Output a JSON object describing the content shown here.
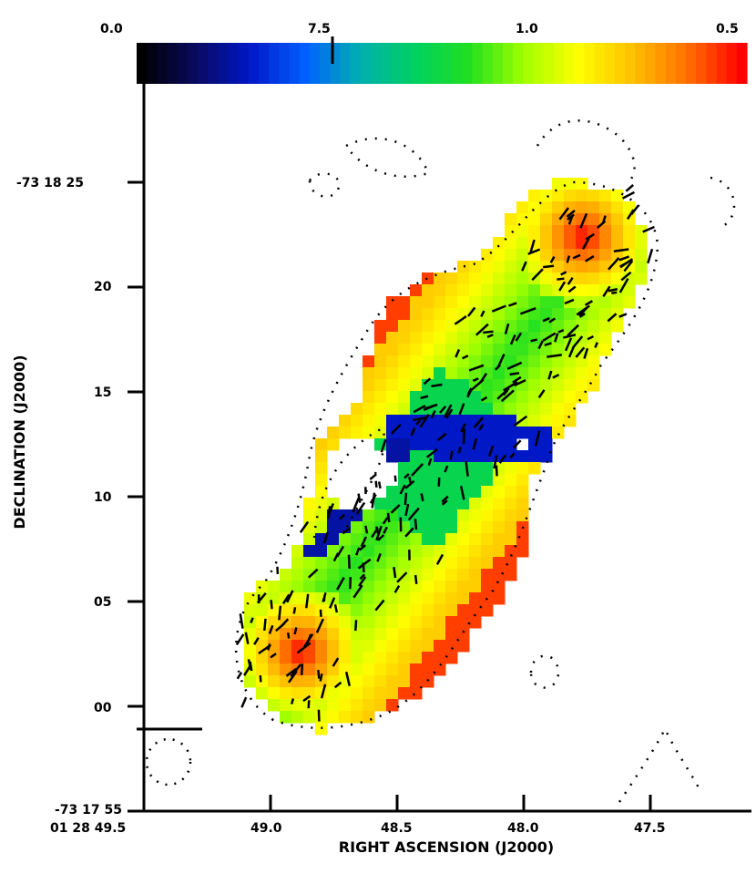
{
  "chart_data": {
    "type": "heatmap",
    "title": "",
    "colorbar": {
      "tick_labels": [
        "0.0",
        "7.5",
        "1.0",
        "0.5"
      ],
      "colors": [
        "#000000",
        "#0a0a60",
        "#0018c8",
        "#0060ff",
        "#00b0b0",
        "#00d060",
        "#20e020",
        "#a0ff00",
        "#ffff00",
        "#ffc000",
        "#ff7000",
        "#ff0000"
      ]
    },
    "xlabel": "RIGHT ASCENSION (J2000)",
    "ylabel": "DECLINATION (J2000)",
    "x_tick_labels": [
      "01 28 49.5",
      "49.0",
      "48.5",
      "48.0",
      "47.5"
    ],
    "y_tick_labels": [
      "-73 18 25",
      "20",
      "15",
      "10",
      "05",
      "00",
      "-73 17 55"
    ],
    "y_tick_values_arcsec": [
      25,
      20,
      15,
      10,
      5,
      0,
      -5
    ],
    "ylim_arcsec": [
      -5,
      29
    ],
    "x_range_label_hint": "RA decreasing left to right",
    "hotspot_color": "#ff0000",
    "lobe_colors": {
      "edge": "#ff0000",
      "mid": "#ffff00",
      "inner": "#20e020",
      "core": "#0018c8"
    }
  }
}
